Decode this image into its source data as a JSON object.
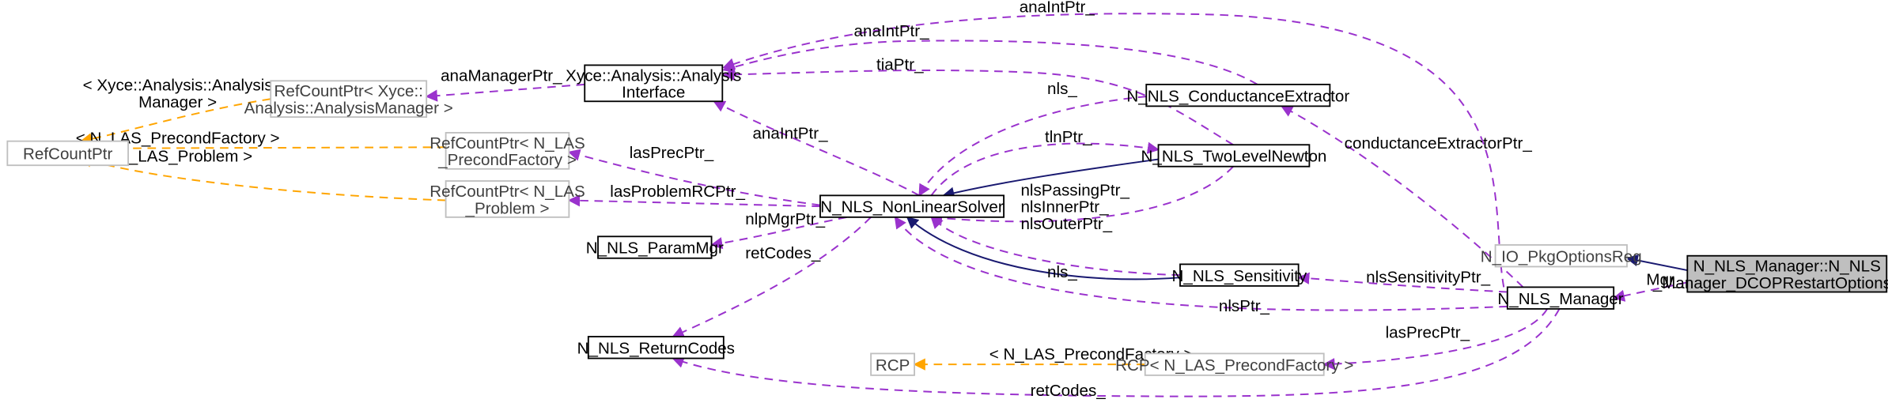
{
  "nodes": {
    "refcountptr": [
      "RefCountPtr"
    ],
    "rcp_analysis_manager": [
      "RefCountPtr< Xyce::",
      "Analysis::AnalysisManager >"
    ],
    "rcp_precond_factory": [
      "RefCountPtr< N_LAS",
      "_PrecondFactory >"
    ],
    "rcp_las_problem": [
      "RefCountPtr< N_LAS",
      "_Problem >"
    ],
    "analysis_interface": [
      "Xyce::Analysis::Analysis",
      "Interface"
    ],
    "param_mgr": [
      "N_NLS_ParamMgr"
    ],
    "return_codes": [
      "N_NLS_ReturnCodes"
    ],
    "rcp_template": [
      "RCP"
    ],
    "nonlinear_solver": [
      "N_NLS_NonLinearSolver"
    ],
    "conductance_extractor": [
      "N_NLS_ConductanceExtractor"
    ],
    "two_level_newton": [
      "N_NLS_TwoLevelNewton"
    ],
    "sensitivity": [
      "N_NLS_Sensitivity"
    ],
    "rcp_n_las_precond": [
      "RCP< N_LAS_PrecondFactory >"
    ],
    "io_pkg_options_reg": [
      "N_IO_PkgOptionsReg"
    ],
    "nls_manager": [
      "N_NLS_Manager"
    ],
    "dcop_restart_options_reg": [
      "N_NLS_Manager::N_NLS",
      "_Manager_DCOPRestartOptionsReg"
    ]
  },
  "edge_labels": {
    "analysis_manager_tpl": [
      "< Xyce::Analysis::Analysis",
      "Manager >"
    ],
    "precond_factory_tpl": [
      "< N_LAS_PrecondFactory >"
    ],
    "las_problem_tpl": [
      "< N_LAS_Problem >"
    ],
    "ana_manager_ptr": [
      "anaManagerPtr_"
    ],
    "ana_int_ptr_top": [
      "anaIntPtr_"
    ],
    "ana_int_ptr_ce": [
      "anaIntPtr_"
    ],
    "tia_ptr": [
      "tiaPtr_"
    ],
    "ana_int_ptr_nls": [
      "anaIntPtr_"
    ],
    "nls_ce": [
      "nls_"
    ],
    "tln_ptr": [
      "tlnPtr_"
    ],
    "las_prec_ptr": [
      "lasPrecPtr_"
    ],
    "las_problem_rc_ptr": [
      "lasProblemRCPtr_"
    ],
    "nlp_mgr_ptr": [
      "nlpMgrPtr_"
    ],
    "ret_codes": [
      "retCodes_"
    ],
    "nls_passing": [
      "nlsPassingPtr_",
      "nlsInnerPtr_",
      "nlsOuterPtr_"
    ],
    "nls_sens": [
      "nls_"
    ],
    "nls_ptr": [
      "nlsPtr_"
    ],
    "conductance_extractor_ptr": [
      "conductanceExtractorPtr_"
    ],
    "nls_sensitivity_ptr": [
      "nlsSensitivityPtr_"
    ],
    "mgr": [
      "Mgr_"
    ],
    "las_prec_ptr_mgr": [
      "lasPrecPtr_"
    ],
    "rcp_precond_tpl": [
      "< N_LAS_PrecondFactory >"
    ],
    "ret_codes_mgr": [
      "retCodes_"
    ]
  },
  "colors": {
    "usage_edge": "#9a32cd",
    "template_edge": "#ffa500",
    "inheritance_edge": "#191970",
    "grey_node_border": "#bfbfbf",
    "focus_node_fill": "#bfbfbf"
  }
}
